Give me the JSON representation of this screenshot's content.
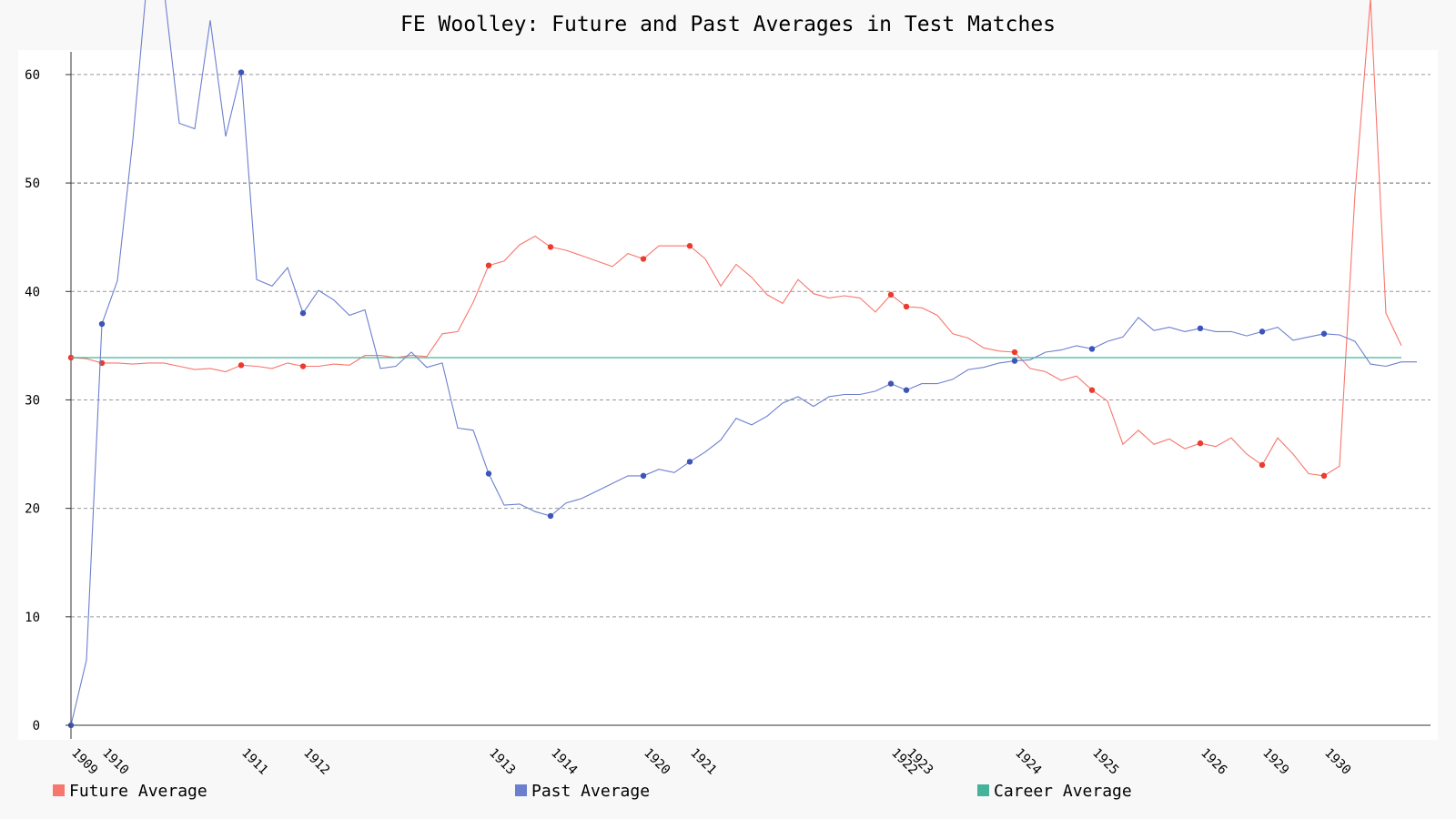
{
  "chart_data": {
    "type": "line",
    "title": "FE Woolley: Future and Past Averages in Test Matches",
    "xlabel": "",
    "ylabel": "",
    "ylim": [
      0,
      61
    ],
    "y_ticks": [
      0,
      10,
      20,
      30,
      40,
      50,
      60
    ],
    "grid": "horizontal dashed",
    "legend_position": "bottom",
    "x_tick_labels": [
      {
        "label": "1909",
        "index": 0
      },
      {
        "label": "1910",
        "index": 2
      },
      {
        "label": "1911",
        "index": 11
      },
      {
        "label": "1912",
        "index": 15
      },
      {
        "label": "1913",
        "index": 27
      },
      {
        "label": "1914",
        "index": 31
      },
      {
        "label": "1920",
        "index": 37
      },
      {
        "label": "1921",
        "index": 40
      },
      {
        "label": "1922",
        "index": 53
      },
      {
        "label": "1923",
        "index": 54
      },
      {
        "label": "1924",
        "index": 61
      },
      {
        "label": "1925",
        "index": 66
      },
      {
        "label": "1926",
        "index": 73
      },
      {
        "label": "1929",
        "index": 77
      },
      {
        "label": "1930",
        "index": 81
      }
    ],
    "series": [
      {
        "name": "Future Average",
        "color": "#f8766d",
        "values": [
          33.9,
          33.8,
          33.4,
          33.4,
          33.3,
          33.4,
          33.4,
          33.1,
          32.8,
          32.9,
          32.6,
          33.2,
          33.1,
          32.9,
          33.4,
          33.1,
          33.1,
          33.3,
          33.2,
          34.1,
          34.1,
          33.9,
          34.1,
          34.0,
          36.1,
          36.3,
          39.0,
          42.4,
          42.8,
          44.3,
          45.1,
          44.1,
          43.8,
          43.3,
          42.8,
          42.3,
          43.5,
          43.0,
          44.2,
          44.2,
          44.2,
          43.0,
          40.5,
          42.5,
          41.3,
          39.7,
          38.9,
          41.1,
          39.8,
          39.4,
          39.6,
          39.4,
          38.1,
          39.7,
          38.6,
          38.5,
          37.8,
          36.1,
          35.7,
          34.8,
          34.5,
          34.4,
          32.9,
          32.6,
          31.8,
          32.2,
          30.9,
          29.9,
          25.9,
          27.2,
          25.9,
          26.4,
          25.5,
          26.0,
          25.7,
          26.5,
          25.0,
          24.0,
          26.5,
          25.0,
          23.2,
          23.0,
          23.9,
          49.0,
          67.0,
          38.0,
          35.0
        ],
        "marker_indices": [
          0,
          2,
          11,
          15,
          27,
          31,
          37,
          40,
          53,
          54,
          61,
          66,
          73,
          77,
          81
        ]
      },
      {
        "name": "Past Average",
        "color": "#6c7fce",
        "values": [
          0.0,
          6.0,
          37.0,
          41.0,
          54.0,
          70.0,
          68.0,
          55.5,
          55.0,
          65.0,
          54.3,
          60.2,
          41.1,
          40.5,
          42.2,
          38.0,
          40.1,
          39.2,
          37.8,
          38.3,
          32.9,
          33.1,
          34.4,
          33.0,
          33.4,
          27.4,
          27.2,
          23.2,
          20.3,
          20.4,
          19.7,
          19.3,
          20.5,
          20.9,
          21.6,
          22.3,
          23.0,
          23.0,
          23.6,
          23.3,
          24.3,
          25.2,
          26.3,
          28.3,
          27.7,
          28.5,
          29.7,
          30.3,
          29.4,
          30.3,
          30.5,
          30.5,
          30.8,
          31.5,
          30.9,
          31.5,
          31.5,
          31.9,
          32.8,
          33.0,
          33.4,
          33.6,
          33.7,
          34.4,
          34.6,
          35.0,
          34.7,
          35.4,
          35.8,
          37.6,
          36.4,
          36.7,
          36.3,
          36.6,
          36.3,
          36.3,
          35.9,
          36.3,
          36.7,
          35.5,
          35.8,
          36.1,
          36.0,
          35.4,
          33.3,
          33.1,
          33.5,
          33.5
        ],
        "marker_indices": [
          0,
          2,
          11,
          15,
          27,
          31,
          37,
          40,
          53,
          54,
          61,
          66,
          73,
          77,
          81
        ]
      },
      {
        "name": "Career Average",
        "color": "#45b29c",
        "values": [
          33.9,
          33.9
        ]
      }
    ]
  }
}
